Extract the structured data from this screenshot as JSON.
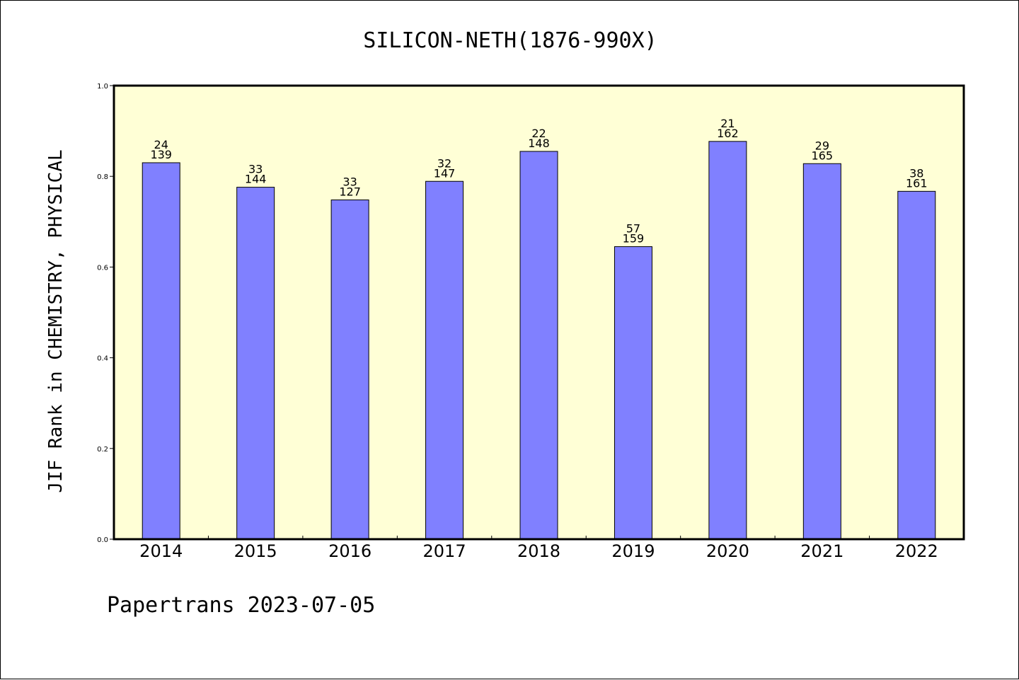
{
  "footer": {
    "text": "Papertrans 2023-07-05"
  },
  "chart_data": {
    "type": "bar",
    "title": "SILICON-NETH(1876-990X)",
    "ylabel": "JIF Rank in CHEMISTRY, PHYSICAL",
    "xlabel": "",
    "ylim": [
      0,
      1.0
    ],
    "yticks": [
      "0.0",
      "0.2",
      "0.4",
      "0.6",
      "0.8",
      "1.0"
    ],
    "grid": false,
    "categories": [
      "2014",
      "2015",
      "2016",
      "2017",
      "2018",
      "2019",
      "2020",
      "2021",
      "2022"
    ],
    "values": [
      0.83,
      0.776,
      0.748,
      0.789,
      0.855,
      0.645,
      0.877,
      0.828,
      0.767
    ],
    "labels": [
      {
        "rank": "24",
        "total": "139"
      },
      {
        "rank": "33",
        "total": "144"
      },
      {
        "rank": "33",
        "total": "127"
      },
      {
        "rank": "32",
        "total": "147"
      },
      {
        "rank": "22",
        "total": "148"
      },
      {
        "rank": "57",
        "total": "159"
      },
      {
        "rank": "21",
        "total": "162"
      },
      {
        "rank": "29",
        "total": "165"
      },
      {
        "rank": "38",
        "total": "161"
      }
    ],
    "colors": {
      "plot_background": "#ffffd6",
      "bar_fill": "#8080ff",
      "bar_stroke": "#000000"
    }
  }
}
